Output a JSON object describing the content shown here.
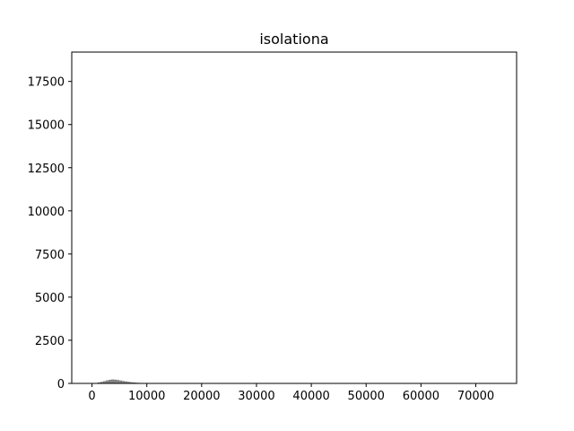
{
  "chart_data": {
    "type": "bar",
    "title": "isolationa",
    "xlabel": "",
    "ylabel": "",
    "xlim": [
      -3690,
      77440
    ],
    "ylim": [
      0,
      19200
    ],
    "x_ticks": [
      0,
      10000,
      20000,
      30000,
      40000,
      50000,
      60000,
      70000
    ],
    "x_tick_labels": [
      "0",
      "10000",
      "20000",
      "30000",
      "40000",
      "50000",
      "60000",
      "70000"
    ],
    "y_ticks": [
      0,
      2500,
      5000,
      7500,
      10000,
      12500,
      15000,
      17500
    ],
    "y_tick_labels": [
      "0",
      "2500",
      "5000",
      "7500",
      "10000",
      "12500",
      "15000",
      "17500"
    ],
    "bar_color": "#808080",
    "bin_width": 500,
    "bins": [
      {
        "x": 0,
        "value": 5
      },
      {
        "x": 500,
        "value": 25
      },
      {
        "x": 1000,
        "value": 55
      },
      {
        "x": 1500,
        "value": 90
      },
      {
        "x": 2000,
        "value": 130
      },
      {
        "x": 2500,
        "value": 175
      },
      {
        "x": 3000,
        "value": 210
      },
      {
        "x": 3500,
        "value": 230
      },
      {
        "x": 4000,
        "value": 220
      },
      {
        "x": 4500,
        "value": 200
      },
      {
        "x": 5000,
        "value": 170
      },
      {
        "x": 5500,
        "value": 140
      },
      {
        "x": 6000,
        "value": 115
      },
      {
        "x": 6500,
        "value": 90
      },
      {
        "x": 7000,
        "value": 70
      },
      {
        "x": 7500,
        "value": 55
      },
      {
        "x": 8000,
        "value": 40
      },
      {
        "x": 8500,
        "value": 30
      },
      {
        "x": 9000,
        "value": 22
      },
      {
        "x": 9500,
        "value": 16
      },
      {
        "x": 10000,
        "value": 10
      },
      {
        "x": 10500,
        "value": 6
      },
      {
        "x": 11000,
        "value": 4
      },
      {
        "x": 12000,
        "value": 2
      },
      {
        "x": 13500,
        "value": 1
      }
    ]
  }
}
